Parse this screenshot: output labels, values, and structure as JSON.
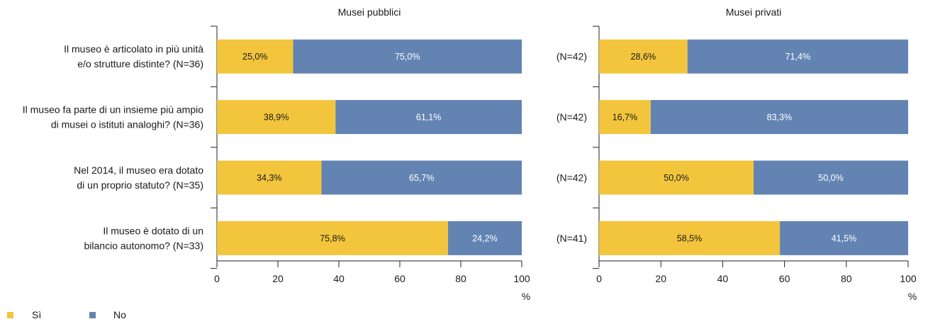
{
  "chart_data": [
    {
      "type": "bar",
      "stacked": true,
      "orientation": "horizontal",
      "title": "Musei pubblici",
      "categories": [
        "Il museo è articolato in più unità\ne/o strutture distinte? (N=36)",
        "Il museo fa parte di un insieme più ampio\ndi musei o istituti analoghi? (N=36)",
        "Nel 2014, il museo era dotato\ndi un  proprio statuto? (N=35)",
        "Il museo è dotato di un\nbilancio autonomo? (N=33)"
      ],
      "series": [
        {
          "name": "Sì",
          "values": [
            25.0,
            38.9,
            34.3,
            75.8
          ],
          "labels": [
            "25,0%",
            "38,9%",
            "34,3%",
            "75,8%"
          ]
        },
        {
          "name": "No",
          "values": [
            75.0,
            61.1,
            65.7,
            24.2
          ],
          "labels": [
            "75,0%",
            "61,1%",
            "65,7%",
            "24,2%"
          ]
        }
      ],
      "xlim": [
        0,
        100
      ],
      "xticks": [
        "0",
        "20",
        "40",
        "60",
        "80",
        "100"
      ],
      "xunit": "%"
    },
    {
      "type": "bar",
      "stacked": true,
      "orientation": "horizontal",
      "title": "Musei privati",
      "categories": [
        "(N=42)",
        "(N=42)",
        "(N=42)",
        "(N=41)"
      ],
      "series": [
        {
          "name": "Sì",
          "values": [
            28.6,
            16.7,
            50.0,
            58.5
          ],
          "labels": [
            "28,6%",
            "16,7%",
            "50,0%",
            "58,5%"
          ]
        },
        {
          "name": "No",
          "values": [
            71.4,
            83.3,
            50.0,
            41.5
          ],
          "labels": [
            "71,4%",
            "83,3%",
            "50,0%",
            "41,5%"
          ]
        }
      ],
      "xlim": [
        0,
        100
      ],
      "xticks": [
        "0",
        "20",
        "40",
        "60",
        "80",
        "100"
      ],
      "xunit": "%"
    }
  ],
  "legend": {
    "placement": "bottom-left",
    "items": [
      {
        "name": "Sì",
        "color": "#f2c53d"
      },
      {
        "name": "No",
        "color": "#6384b3"
      }
    ]
  },
  "colors": {
    "si": "#f2c53d",
    "no": "#6384b3",
    "axis": "#222222"
  }
}
